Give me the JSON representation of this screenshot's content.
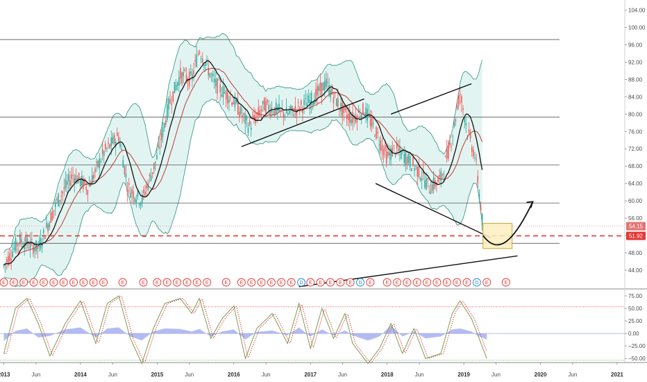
{
  "colors": {
    "up": "#26a69a",
    "down": "#ef5350",
    "band_fill": "#d6f0ec",
    "band_line": "#3d9a8a",
    "ma_fast": "#111111",
    "ma_slow": "#c0392b",
    "hline": "#555555",
    "dash_red": "#e53935",
    "osc_hist": "#9aa6ee",
    "osc_k": "#7b9a56",
    "osc_d": "#d84a3a",
    "osc_upper": "#e53935",
    "osc_lower": "#43a047",
    "highlight_box": "#fdefc0",
    "highlight_border": "#c9a227",
    "event_e": "#e53935",
    "event_d": "#1e88e5"
  },
  "price_tags": [
    {
      "label": "54.15",
      "value": 54.15,
      "color": "#e57373"
    },
    {
      "label": "51.92",
      "value": 51.92,
      "color": "#e53935"
    }
  ],
  "chart_data": [
    {
      "type": "candlestick",
      "title": "",
      "ylabel": "",
      "xlabel": "",
      "ylim": [
        40,
        106
      ],
      "xlim": [
        2012.95,
        2021.1
      ],
      "y_ticks": [
        "44.00",
        "48.00",
        "52.00",
        "56.00",
        "60.00",
        "64.00",
        "68.00",
        "72.00",
        "76.00",
        "80.00",
        "84.00",
        "88.00",
        "92.00",
        "96.00",
        "100.00",
        "104.00"
      ],
      "x_ticks": [
        {
          "label": "2013",
          "value": 2013.0,
          "bold": true
        },
        {
          "label": "Jun",
          "value": 2013.42,
          "bold": false
        },
        {
          "label": "2014",
          "value": 2014.0,
          "bold": true
        },
        {
          "label": "Jun",
          "value": 2014.42,
          "bold": false
        },
        {
          "label": "2015",
          "value": 2015.0,
          "bold": true
        },
        {
          "label": "Jun",
          "value": 2015.42,
          "bold": false
        },
        {
          "label": "2016",
          "value": 2016.0,
          "bold": true
        },
        {
          "label": "Jun",
          "value": 2016.42,
          "bold": false
        },
        {
          "label": "2017",
          "value": 2017.0,
          "bold": true
        },
        {
          "label": "Jun",
          "value": 2017.42,
          "bold": false
        },
        {
          "label": "2018",
          "value": 2018.0,
          "bold": true
        },
        {
          "label": "Jun",
          "value": 2018.42,
          "bold": false
        },
        {
          "label": "2019",
          "value": 2019.0,
          "bold": true
        },
        {
          "label": "Jun",
          "value": 2019.42,
          "bold": false
        },
        {
          "label": "2020",
          "value": 2020.0,
          "bold": true
        },
        {
          "label": "Jun",
          "value": 2020.42,
          "bold": false
        },
        {
          "label": "2021",
          "value": 2021.0,
          "bold": true
        }
      ],
      "price_path": [
        [
          2013.0,
          45
        ],
        [
          2013.2,
          51
        ],
        [
          2013.45,
          49
        ],
        [
          2013.7,
          60
        ],
        [
          2013.9,
          66
        ],
        [
          2014.1,
          63
        ],
        [
          2014.3,
          71
        ],
        [
          2014.5,
          75
        ],
        [
          2014.62,
          63
        ],
        [
          2014.8,
          60
        ],
        [
          2015.0,
          70
        ],
        [
          2015.15,
          82
        ],
        [
          2015.3,
          89
        ],
        [
          2015.45,
          88
        ],
        [
          2015.55,
          95
        ],
        [
          2015.75,
          87
        ],
        [
          2016.0,
          83
        ],
        [
          2016.1,
          80
        ],
        [
          2016.2,
          77
        ],
        [
          2016.4,
          82
        ],
        [
          2016.7,
          80
        ],
        [
          2017.0,
          83
        ],
        [
          2017.2,
          87
        ],
        [
          2017.45,
          80
        ],
        [
          2017.55,
          79
        ],
        [
          2017.7,
          81
        ],
        [
          2017.85,
          76
        ],
        [
          2018.0,
          70
        ],
        [
          2018.1,
          72
        ],
        [
          2018.25,
          70
        ],
        [
          2018.45,
          66
        ],
        [
          2018.55,
          63
        ],
        [
          2018.7,
          65
        ],
        [
          2018.85,
          75
        ],
        [
          2018.95,
          85
        ],
        [
          2019.05,
          76
        ],
        [
          2019.15,
          70
        ],
        [
          2019.2,
          62
        ],
        [
          2019.25,
          54
        ]
      ],
      "trend_lines": [
        {
          "name": "trendline-2016-2017",
          "from": [
            2016.1,
            72.5
          ],
          "to": [
            2017.7,
            83.5
          ]
        },
        {
          "name": "trendline-2018-upper",
          "from": [
            2018.05,
            80
          ],
          "to": [
            2019.1,
            87
          ]
        },
        {
          "name": "trendline-2018-lower",
          "from": [
            2017.85,
            64
          ],
          "to": [
            2019.35,
            51.5
          ]
        },
        {
          "name": "trendline-bottom",
          "from": [
            2016.85,
            40.2
          ],
          "to": [
            2019.7,
            47.3
          ]
        }
      ],
      "horizontal_levels": [
        97.2,
        79.3,
        68.3,
        59.5,
        50.2
      ],
      "projection_path": [
        [
          2019.25,
          52.0
        ],
        [
          2019.45,
          49.5
        ],
        [
          2019.65,
          51.5
        ],
        [
          2019.9,
          59.8
        ]
      ],
      "highlight_box": {
        "x0": 2019.25,
        "x1": 2019.63,
        "y0": 49.0,
        "y1": 54.8
      },
      "events_y": 41.2,
      "events": [
        {
          "x": 2013.0,
          "t": "E"
        },
        {
          "x": 2013.13,
          "t": "E"
        },
        {
          "x": 2013.26,
          "t": "E"
        },
        {
          "x": 2013.39,
          "t": "E"
        },
        {
          "x": 2013.52,
          "t": "E"
        },
        {
          "x": 2013.65,
          "t": "E"
        },
        {
          "x": 2013.78,
          "t": "E"
        },
        {
          "x": 2013.91,
          "t": "E"
        },
        {
          "x": 2014.04,
          "t": "E"
        },
        {
          "x": 2014.17,
          "t": "E"
        },
        {
          "x": 2014.3,
          "t": "E"
        },
        {
          "x": 2014.55,
          "t": "E"
        },
        {
          "x": 2014.82,
          "t": "E"
        },
        {
          "x": 2015.0,
          "t": "E"
        },
        {
          "x": 2015.13,
          "t": "E"
        },
        {
          "x": 2015.26,
          "t": "E"
        },
        {
          "x": 2015.39,
          "t": "E"
        },
        {
          "x": 2015.52,
          "t": "E"
        },
        {
          "x": 2015.65,
          "t": "E"
        },
        {
          "x": 2015.9,
          "t": "E"
        },
        {
          "x": 2016.1,
          "t": "E"
        },
        {
          "x": 2016.23,
          "t": "E"
        },
        {
          "x": 2016.36,
          "t": "E"
        },
        {
          "x": 2016.49,
          "t": "E"
        },
        {
          "x": 2016.62,
          "t": "E"
        },
        {
          "x": 2016.75,
          "t": "E"
        },
        {
          "x": 2016.88,
          "t": "D"
        },
        {
          "x": 2017.0,
          "t": "E"
        },
        {
          "x": 2017.13,
          "t": "E"
        },
        {
          "x": 2017.26,
          "t": "E"
        },
        {
          "x": 2017.39,
          "t": "E"
        },
        {
          "x": 2017.52,
          "t": "E"
        },
        {
          "x": 2017.65,
          "t": "D"
        },
        {
          "x": 2017.78,
          "t": "E"
        },
        {
          "x": 2018.0,
          "t": "E"
        },
        {
          "x": 2018.13,
          "t": "E"
        },
        {
          "x": 2018.26,
          "t": "E"
        },
        {
          "x": 2018.39,
          "t": "E"
        },
        {
          "x": 2018.52,
          "t": "E"
        },
        {
          "x": 2018.65,
          "t": "E"
        },
        {
          "x": 2018.78,
          "t": "E"
        },
        {
          "x": 2018.91,
          "t": "E"
        },
        {
          "x": 2019.04,
          "t": "E"
        },
        {
          "x": 2019.17,
          "t": "D"
        },
        {
          "x": 2019.3,
          "t": "E"
        },
        {
          "x": 2019.55,
          "t": "E"
        }
      ]
    },
    {
      "type": "line",
      "title": "",
      "ylabel": "",
      "ylim": [
        -58,
        86
      ],
      "y_ticks": [
        "75.00",
        "50.00",
        "25.00",
        "0.00",
        "−25.00",
        "−50.00"
      ],
      "upper_level": 53,
      "lower_level": -53,
      "k_path": [
        [
          2013.0,
          -40
        ],
        [
          2013.15,
          50
        ],
        [
          2013.3,
          70
        ],
        [
          2013.45,
          20
        ],
        [
          2013.6,
          -45
        ],
        [
          2013.8,
          20
        ],
        [
          2014.0,
          65
        ],
        [
          2014.2,
          -20
        ],
        [
          2014.35,
          60
        ],
        [
          2014.5,
          75
        ],
        [
          2014.65,
          -10
        ],
        [
          2014.8,
          -60
        ],
        [
          2014.95,
          10
        ],
        [
          2015.1,
          60
        ],
        [
          2015.3,
          70
        ],
        [
          2015.45,
          40
        ],
        [
          2015.55,
          70
        ],
        [
          2015.7,
          -10
        ],
        [
          2015.85,
          30
        ],
        [
          2016.0,
          55
        ],
        [
          2016.15,
          -50
        ],
        [
          2016.3,
          10
        ],
        [
          2016.5,
          40
        ],
        [
          2016.7,
          -20
        ],
        [
          2016.85,
          60
        ],
        [
          2017.0,
          -30
        ],
        [
          2017.15,
          50
        ],
        [
          2017.3,
          -10
        ],
        [
          2017.45,
          40
        ],
        [
          2017.55,
          -20
        ],
        [
          2017.75,
          -60
        ],
        [
          2017.9,
          -30
        ],
        [
          2018.05,
          20
        ],
        [
          2018.2,
          -40
        ],
        [
          2018.35,
          10
        ],
        [
          2018.5,
          -50
        ],
        [
          2018.7,
          -40
        ],
        [
          2018.85,
          40
        ],
        [
          2018.95,
          65
        ],
        [
          2019.1,
          30
        ],
        [
          2019.2,
          -10
        ],
        [
          2019.3,
          -50
        ]
      ],
      "hist_path": [
        [
          2013.0,
          -15
        ],
        [
          2013.15,
          5
        ],
        [
          2013.3,
          10
        ],
        [
          2013.45,
          -8
        ],
        [
          2013.6,
          -5
        ],
        [
          2013.8,
          8
        ],
        [
          2014.0,
          12
        ],
        [
          2014.2,
          -8
        ],
        [
          2014.35,
          10
        ],
        [
          2014.5,
          12
        ],
        [
          2014.65,
          -6
        ],
        [
          2014.8,
          -14
        ],
        [
          2014.95,
          4
        ],
        [
          2015.1,
          10
        ],
        [
          2015.3,
          9
        ],
        [
          2015.45,
          4
        ],
        [
          2015.55,
          9
        ],
        [
          2015.7,
          -6
        ],
        [
          2015.85,
          4
        ],
        [
          2016.0,
          8
        ],
        [
          2016.15,
          -12
        ],
        [
          2016.3,
          3
        ],
        [
          2016.5,
          6
        ],
        [
          2016.7,
          -4
        ],
        [
          2016.85,
          12
        ],
        [
          2017.0,
          -6
        ],
        [
          2017.15,
          8
        ],
        [
          2017.3,
          -4
        ],
        [
          2017.45,
          6
        ],
        [
          2017.55,
          -4
        ],
        [
          2017.75,
          -14
        ],
        [
          2017.9,
          -6
        ],
        [
          2018.05,
          16
        ],
        [
          2018.2,
          -6
        ],
        [
          2018.35,
          4
        ],
        [
          2018.5,
          -10
        ],
        [
          2018.7,
          -6
        ],
        [
          2018.85,
          8
        ],
        [
          2018.95,
          10
        ],
        [
          2019.1,
          4
        ],
        [
          2019.2,
          -6
        ],
        [
          2019.3,
          -12
        ]
      ]
    }
  ]
}
